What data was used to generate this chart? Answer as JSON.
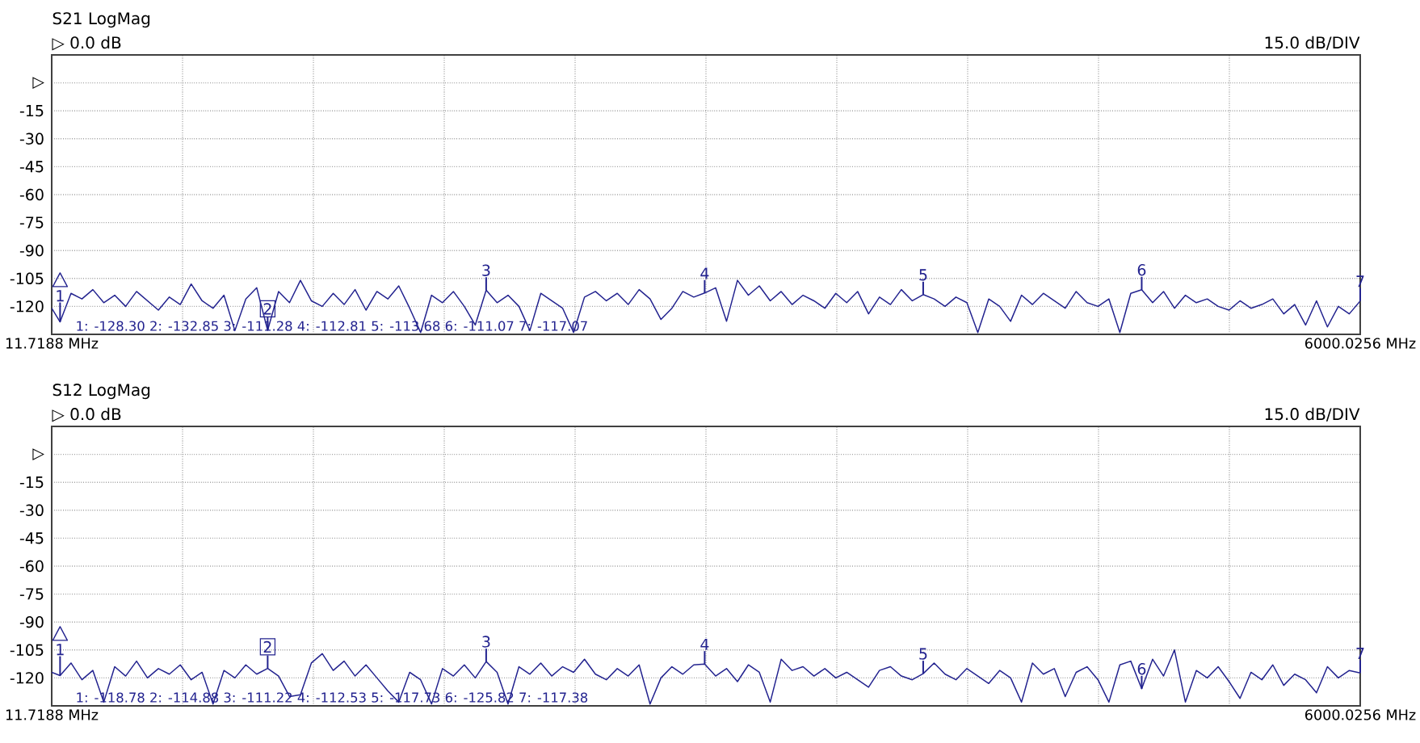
{
  "chart_data": [
    {
      "type": "line",
      "title": "S21 LogMag",
      "subtitle": "▷ 0.0 dB",
      "annotations": [
        "15.0 dB/DIV",
        "1: -128.30 2: -132.85 3: -111.28 4: -112.81 5: -113.68 6: -111.07 7: -117.07",
        {
          "text": "1",
          "x": 50,
          "y": -128.3
        },
        {
          "text": "2",
          "x": 1000,
          "y": -132.85
        },
        {
          "text": "3",
          "x": 2000,
          "y": -111.28
        },
        {
          "text": "4",
          "x": 3000,
          "y": -112.81
        },
        {
          "text": "5",
          "x": 4000,
          "y": -113.68
        },
        {
          "text": "6",
          "x": 5000,
          "y": -111.07
        },
        {
          "text": "7",
          "x": 6000.0256,
          "y": -117.07
        }
      ],
      "x": [
        11.7188,
        50,
        100,
        150,
        200,
        250,
        300,
        350,
        400,
        450,
        500,
        550,
        600,
        650,
        700,
        750,
        800,
        850,
        900,
        950,
        1000,
        1050,
        1100,
        1150,
        1200,
        1250,
        1300,
        1350,
        1400,
        1450,
        1500,
        1550,
        1600,
        1650,
        1700,
        1750,
        1800,
        1850,
        1900,
        1950,
        2000,
        2050,
        2100,
        2150,
        2200,
        2250,
        2300,
        2350,
        2400,
        2450,
        2500,
        2550,
        2600,
        2650,
        2700,
        2750,
        2800,
        2850,
        2900,
        2950,
        3000,
        3050,
        3100,
        3150,
        3200,
        3250,
        3300,
        3350,
        3400,
        3450,
        3500,
        3550,
        3600,
        3650,
        3700,
        3750,
        3800,
        3850,
        3900,
        3950,
        4000,
        4050,
        4100,
        4150,
        4200,
        4250,
        4300,
        4350,
        4400,
        4450,
        4500,
        4550,
        4600,
        4650,
        4700,
        4750,
        4800,
        4850,
        4900,
        4950,
        5000,
        5050,
        5100,
        5150,
        5200,
        5250,
        5300,
        5350,
        5400,
        5450,
        5500,
        5550,
        5600,
        5650,
        5700,
        5750,
        5800,
        5850,
        5900,
        5950,
        6000.0256
      ],
      "values": [
        -121,
        -128.3,
        -113,
        -116,
        -111,
        -118,
        -114,
        -120,
        -112,
        -117,
        -122,
        -115,
        -119,
        -108,
        -117,
        -121,
        -114,
        -133,
        -116,
        -110,
        -132.85,
        -112,
        -118,
        -106,
        -117,
        -120,
        -113,
        -119,
        -111,
        -122,
        -112,
        -116,
        -109,
        -121,
        -134,
        -114,
        -118,
        -112,
        -120,
        -130,
        -111.28,
        -118,
        -114,
        -120,
        -133,
        -113,
        -117,
        -121,
        -134,
        -115,
        -112,
        -117,
        -113,
        -119,
        -111,
        -116,
        -127,
        -121,
        -112,
        -115,
        -112.81,
        -110,
        -128,
        -106,
        -114,
        -109,
        -117,
        -112,
        -119,
        -114,
        -117,
        -121,
        -113,
        -118,
        -112,
        -124,
        -115,
        -119,
        -111,
        -117,
        -113.68,
        -116,
        -120,
        -115,
        -118,
        -134,
        -116,
        -120,
        -128,
        -114,
        -119,
        -113,
        -117,
        -121,
        -112,
        -118,
        -120,
        -116,
        -134,
        -113,
        -111.07,
        -118,
        -112,
        -121,
        -114,
        -118,
        -116,
        -120,
        -122,
        -117,
        -121,
        -119,
        -116,
        -124,
        -119,
        -130,
        -117,
        -131,
        -120,
        -124,
        -117.07
      ],
      "color": "#23238f",
      "xlim": [
        11.7188,
        6000.0256
      ],
      "xticks": [
        {
          "value": 11.7188,
          "label": "11.7188 MHz"
        },
        {
          "value": 610.55,
          "label": null
        },
        {
          "value": 1209.38,
          "label": null
        },
        {
          "value": 1808.21,
          "label": null
        },
        {
          "value": 2407.04,
          "label": null
        },
        {
          "value": 3005.87,
          "label": null
        },
        {
          "value": 3604.7,
          "label": null
        },
        {
          "value": 4203.53,
          "label": null
        },
        {
          "value": 4802.36,
          "label": null
        },
        {
          "value": 5401.19,
          "label": null
        },
        {
          "value": 6000.0256,
          "label": "6000.0256 MHz"
        }
      ],
      "ylim": [
        -135,
        15
      ],
      "yticks": [
        {
          "value": 0,
          "label": "▷"
        },
        -15,
        -30,
        -45,
        -60,
        -75,
        -90,
        -105,
        -120
      ],
      "grid": true
    },
    {
      "type": "line",
      "title": "S12 LogMag",
      "subtitle": "▷ 0.0 dB",
      "annotations": [
        "15.0 dB/DIV",
        "1: -118.78 2: -114.88 3: -111.22 4: -112.53 5: -117.73 6: -125.82 7: -117.38",
        {
          "text": "1",
          "x": 50,
          "y": -118.78
        },
        {
          "text": "2",
          "x": 1000,
          "y": -114.88
        },
        {
          "text": "3",
          "x": 2000,
          "y": -111.22
        },
        {
          "text": "4",
          "x": 3000,
          "y": -112.53
        },
        {
          "text": "5",
          "x": 4000,
          "y": -117.73
        },
        {
          "text": "6",
          "x": 5000,
          "y": -125.82
        },
        {
          "text": "7",
          "x": 6000.0256,
          "y": -117.38
        }
      ],
      "x": [
        11.7188,
        50,
        100,
        150,
        200,
        250,
        300,
        350,
        400,
        450,
        500,
        550,
        600,
        650,
        700,
        750,
        800,
        850,
        900,
        950,
        1000,
        1050,
        1100,
        1150,
        1200,
        1250,
        1300,
        1350,
        1400,
        1450,
        1500,
        1550,
        1600,
        1650,
        1700,
        1750,
        1800,
        1850,
        1900,
        1950,
        2000,
        2050,
        2100,
        2150,
        2200,
        2250,
        2300,
        2350,
        2400,
        2450,
        2500,
        2550,
        2600,
        2650,
        2700,
        2750,
        2800,
        2850,
        2900,
        2950,
        3000,
        3050,
        3100,
        3150,
        3200,
        3250,
        3300,
        3350,
        3400,
        3450,
        3500,
        3550,
        3600,
        3650,
        3700,
        3750,
        3800,
        3850,
        3900,
        3950,
        4000,
        4050,
        4100,
        4150,
        4200,
        4250,
        4300,
        4350,
        4400,
        4450,
        4500,
        4550,
        4600,
        4650,
        4700,
        4750,
        4800,
        4850,
        4900,
        4950,
        5000,
        5050,
        5100,
        5150,
        5200,
        5250,
        5300,
        5350,
        5400,
        5450,
        5500,
        5550,
        5600,
        5650,
        5700,
        5750,
        5800,
        5850,
        5900,
        5950,
        6000.0256
      ],
      "values": [
        -117,
        -118.78,
        -112,
        -121,
        -116,
        -133,
        -114,
        -119,
        -111,
        -120,
        -115,
        -118,
        -113,
        -121,
        -117,
        -134,
        -116,
        -120,
        -113,
        -118,
        -114.88,
        -119,
        -130,
        -129,
        -112,
        -107,
        -116,
        -111,
        -119,
        -113,
        -120,
        -127,
        -133,
        -117,
        -121,
        -134,
        -115,
        -119,
        -113,
        -120,
        -111.22,
        -117,
        -134,
        -114,
        -118,
        -112,
        -119,
        -114,
        -117,
        -110,
        -118,
        -121,
        -115,
        -119,
        -113,
        -134,
        -120,
        -114,
        -118,
        -113,
        -112.53,
        -119,
        -115,
        -122,
        -113,
        -117,
        -133,
        -110,
        -116,
        -114,
        -119,
        -115,
        -120,
        -117,
        -121,
        -125,
        -116,
        -114,
        -119,
        -121,
        -117.73,
        -112,
        -118,
        -121,
        -115,
        -119,
        -123,
        -116,
        -120,
        -133,
        -112,
        -118,
        -115,
        -130,
        -117,
        -114,
        -121,
        -133,
        -113,
        -111,
        -125.82,
        -110,
        -119,
        -105,
        -133,
        -116,
        -120,
        -114,
        -122,
        -131,
        -117,
        -121,
        -113,
        -124,
        -118,
        -121,
        -128,
        -114,
        -120,
        -116,
        -117.38
      ],
      "color": "#23238f",
      "xlim": [
        11.7188,
        6000.0256
      ],
      "xticks": [
        {
          "value": 11.7188,
          "label": "11.7188 MHz"
        },
        {
          "value": 610.55,
          "label": null
        },
        {
          "value": 1209.38,
          "label": null
        },
        {
          "value": 1808.21,
          "label": null
        },
        {
          "value": 2407.04,
          "label": null
        },
        {
          "value": 3005.87,
          "label": null
        },
        {
          "value": 3604.7,
          "label": null
        },
        {
          "value": 4203.53,
          "label": null
        },
        {
          "value": 4802.36,
          "label": null
        },
        {
          "value": 5401.19,
          "label": null
        },
        {
          "value": 6000.0256,
          "label": "6000.0256 MHz"
        }
      ],
      "ylim": [
        -135,
        15
      ],
      "yticks": [
        {
          "value": 0,
          "label": "▷"
        },
        -15,
        -30,
        -45,
        -60,
        -75,
        -90,
        -105,
        -120
      ],
      "grid": true
    }
  ]
}
